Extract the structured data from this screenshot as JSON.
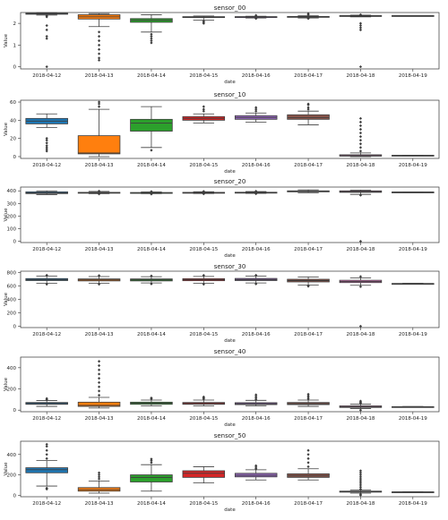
{
  "chart_data": [
    {
      "type": "box",
      "title": "sensor_00",
      "xlabel": "date",
      "ylabel": "Value",
      "categories": [
        "2018-04-12",
        "2018-04-13",
        "2018-04-14",
        "2018-04-15",
        "2018-04-16",
        "2018-04-17",
        "2018-04-18",
        "2018-04-19"
      ],
      "ylim": [
        -0.1,
        2.5
      ],
      "yticks": [
        0,
        1,
        2
      ],
      "boxes": [
        {
          "min": 2.38,
          "q1": 2.42,
          "median": 2.45,
          "q3": 2.47,
          "max": 2.49,
          "outliers": [
            2.35,
            2.3,
            1.9,
            1.7,
            1.4,
            1.3,
            0.0
          ],
          "color": "#1f77b4"
        },
        {
          "min": 1.85,
          "q1": 2.2,
          "median": 2.3,
          "q3": 2.4,
          "max": 2.45,
          "outliers": [
            1.6,
            1.4,
            1.2,
            1.0,
            0.8,
            0.6,
            0.4,
            0.3
          ],
          "color": "#ff7f0e"
        },
        {
          "min": 1.6,
          "q1": 2.05,
          "median": 2.15,
          "q3": 2.22,
          "max": 2.4,
          "outliers": [
            1.5,
            1.4,
            1.3,
            1.2,
            1.1
          ],
          "color": "#2ca02c"
        },
        {
          "min": 2.15,
          "q1": 2.27,
          "median": 2.29,
          "q3": 2.31,
          "max": 2.34,
          "outliers": [
            2.1,
            2.05,
            2.0
          ],
          "color": "#d62728"
        },
        {
          "min": 2.25,
          "q1": 2.29,
          "median": 2.3,
          "q3": 2.31,
          "max": 2.33,
          "outliers": [
            2.22,
            2.37
          ],
          "color": "#9467bd"
        },
        {
          "min": 2.25,
          "q1": 2.3,
          "median": 2.31,
          "q3": 2.32,
          "max": 2.35,
          "outliers": [
            2.4,
            2.45,
            2.22
          ],
          "color": "#8c564b"
        },
        {
          "min": 2.3,
          "q1": 2.34,
          "median": 2.35,
          "q3": 2.36,
          "max": 2.38,
          "outliers": [
            2.4,
            2.0,
            1.9,
            1.8,
            1.7,
            0.0
          ],
          "color": "#e377c2"
        },
        {
          "min": 2.34,
          "q1": 2.34,
          "median": 2.35,
          "q3": 2.36,
          "max": 2.36,
          "outliers": [],
          "color": "#7f7f7f"
        }
      ]
    },
    {
      "type": "box",
      "title": "sensor_10",
      "xlabel": "date",
      "ylabel": "Value",
      "categories": [
        "2018-04-12",
        "2018-04-13",
        "2018-04-14",
        "2018-04-15",
        "2018-04-16",
        "2018-04-17",
        "2018-04-18",
        "2018-04-19"
      ],
      "ylim": [
        -2,
        62
      ],
      "yticks": [
        0,
        20,
        40,
        60
      ],
      "boxes": [
        {
          "min": 32,
          "q1": 36,
          "median": 39,
          "q3": 42,
          "max": 47,
          "outliers": [
            20,
            18,
            15,
            12,
            10,
            8,
            6
          ],
          "color": "#1f77b4"
        },
        {
          "min": 0,
          "q1": 3,
          "median": 4,
          "q3": 23,
          "max": 52,
          "outliers": [
            55,
            58,
            60
          ],
          "color": "#ff7f0e"
        },
        {
          "min": 10,
          "q1": 28,
          "median": 37,
          "q3": 41,
          "max": 55,
          "outliers": [
            7
          ],
          "color": "#2ca02c"
        },
        {
          "min": 37,
          "q1": 40,
          "median": 42,
          "q3": 44,
          "max": 47,
          "outliers": [
            50,
            52,
            55
          ],
          "color": "#d62728"
        },
        {
          "min": 38,
          "q1": 41,
          "median": 43,
          "q3": 45,
          "max": 48,
          "outliers": [
            50,
            52,
            54
          ],
          "color": "#9467bd"
        },
        {
          "min": 35,
          "q1": 41,
          "median": 43,
          "q3": 46,
          "max": 50,
          "outliers": [
            52,
            54,
            57,
            58
          ],
          "color": "#8c564b"
        },
        {
          "min": 0,
          "q1": 0.5,
          "median": 1,
          "q3": 2,
          "max": 4,
          "outliers": [
            6,
            10,
            14,
            18,
            22,
            26,
            30,
            34,
            38,
            42
          ],
          "color": "#e377c2"
        },
        {
          "min": 1,
          "q1": 1,
          "median": 1,
          "q3": 1.5,
          "max": 1.5,
          "outliers": [],
          "color": "#7f7f7f"
        }
      ]
    },
    {
      "type": "box",
      "title": "sensor_20",
      "xlabel": "date",
      "ylabel": "Value",
      "categories": [
        "2018-04-12",
        "2018-04-13",
        "2018-04-14",
        "2018-04-15",
        "2018-04-16",
        "2018-04-17",
        "2018-04-18",
        "2018-04-19"
      ],
      "ylim": [
        -10,
        430
      ],
      "yticks": [
        0,
        100,
        200,
        300,
        400
      ],
      "boxes": [
        {
          "min": 370,
          "q1": 378,
          "median": 384,
          "q3": 392,
          "max": 400,
          "outliers": [],
          "color": "#1f77b4"
        },
        {
          "min": 378,
          "q1": 382,
          "median": 385,
          "q3": 388,
          "max": 395,
          "outliers": [
            398,
            375
          ],
          "color": "#ff7f0e"
        },
        {
          "min": 378,
          "q1": 381,
          "median": 384,
          "q3": 387,
          "max": 392,
          "outliers": [
            395,
            374
          ],
          "color": "#2ca02c"
        },
        {
          "min": 379,
          "q1": 382,
          "median": 385,
          "q3": 388,
          "max": 393,
          "outliers": [
            396,
            376
          ],
          "color": "#d62728"
        },
        {
          "min": 380,
          "q1": 383,
          "median": 386,
          "q3": 389,
          "max": 394,
          "outliers": [
            397,
            377
          ],
          "color": "#9467bd"
        },
        {
          "min": 385,
          "q1": 392,
          "median": 396,
          "q3": 400,
          "max": 408,
          "outliers": [],
          "color": "#8c564b"
        },
        {
          "min": 372,
          "q1": 388,
          "median": 394,
          "q3": 400,
          "max": 406,
          "outliers": [
            365,
            0
          ],
          "color": "#e377c2"
        },
        {
          "min": 388,
          "q1": 389,
          "median": 390,
          "q3": 391,
          "max": 392,
          "outliers": [],
          "color": "#7f7f7f"
        }
      ]
    },
    {
      "type": "box",
      "title": "sensor_30",
      "xlabel": "date",
      "ylabel": "Value",
      "categories": [
        "2018-04-12",
        "2018-04-13",
        "2018-04-14",
        "2018-04-15",
        "2018-04-16",
        "2018-04-17",
        "2018-04-18",
        "2018-04-19"
      ],
      "ylim": [
        -20,
        820
      ],
      "yticks": [
        0,
        200,
        400,
        600,
        800
      ],
      "boxes": [
        {
          "min": 640,
          "q1": 680,
          "median": 695,
          "q3": 710,
          "max": 745,
          "outliers": [
            760,
            625
          ],
          "color": "#1f77b4"
        },
        {
          "min": 640,
          "q1": 675,
          "median": 690,
          "q3": 705,
          "max": 740,
          "outliers": [
            755,
            625
          ],
          "color": "#ff7f0e"
        },
        {
          "min": 645,
          "q1": 675,
          "median": 690,
          "q3": 705,
          "max": 738,
          "outliers": [
            750,
            630
          ],
          "color": "#2ca02c"
        },
        {
          "min": 640,
          "q1": 678,
          "median": 693,
          "q3": 708,
          "max": 742,
          "outliers": [
            758,
            625
          ],
          "color": "#d62728"
        },
        {
          "min": 645,
          "q1": 680,
          "median": 695,
          "q3": 712,
          "max": 745,
          "outliers": [
            760,
            630
          ],
          "color": "#9467bd"
        },
        {
          "min": 615,
          "q1": 660,
          "median": 680,
          "q3": 700,
          "max": 735,
          "outliers": [
            600,
            595
          ],
          "color": "#8c564b"
        },
        {
          "min": 610,
          "q1": 650,
          "median": 665,
          "q3": 685,
          "max": 720,
          "outliers": [
            740,
            590,
            0
          ],
          "color": "#e377c2"
        },
        {
          "min": 633,
          "q1": 635,
          "median": 636,
          "q3": 637,
          "max": 640,
          "outliers": [],
          "color": "#7f7f7f"
        }
      ]
    },
    {
      "type": "box",
      "title": "sensor_40",
      "xlabel": "date",
      "ylabel": "Value",
      "categories": [
        "2018-04-12",
        "2018-04-13",
        "2018-04-14",
        "2018-04-15",
        "2018-04-16",
        "2018-04-17",
        "2018-04-18",
        "2018-04-19"
      ],
      "ylim": [
        -15,
        500
      ],
      "yticks": [
        0,
        200,
        400
      ],
      "boxes": [
        {
          "min": 35,
          "q1": 55,
          "median": 62,
          "q3": 72,
          "max": 90,
          "outliers": [
            100,
            110
          ],
          "color": "#1f77b4"
        },
        {
          "min": 20,
          "q1": 35,
          "median": 45,
          "q3": 75,
          "max": 120,
          "outliers": [
            140,
            180,
            220,
            260,
            300,
            340,
            380,
            420,
            460
          ],
          "color": "#ff7f0e"
        },
        {
          "min": 40,
          "q1": 55,
          "median": 65,
          "q3": 75,
          "max": 95,
          "outliers": [
            105,
            115
          ],
          "color": "#2ca02c"
        },
        {
          "min": 40,
          "q1": 55,
          "median": 62,
          "q3": 72,
          "max": 95,
          "outliers": [
            105,
            115,
            125
          ],
          "color": "#d62728"
        },
        {
          "min": 40,
          "q1": 52,
          "median": 60,
          "q3": 70,
          "max": 92,
          "outliers": [
            100,
            115,
            130,
            145
          ],
          "color": "#9467bd"
        },
        {
          "min": 35,
          "q1": 52,
          "median": 60,
          "q3": 72,
          "max": 95,
          "outliers": [
            105,
            120,
            135,
            150
          ],
          "color": "#8c564b"
        },
        {
          "min": 15,
          "q1": 25,
          "median": 32,
          "q3": 40,
          "max": 55,
          "outliers": [
            65,
            75,
            85,
            0
          ],
          "color": "#e377c2"
        },
        {
          "min": 30,
          "q1": 31,
          "median": 32,
          "q3": 33,
          "max": 34,
          "outliers": [],
          "color": "#7f7f7f"
        }
      ]
    },
    {
      "type": "box",
      "title": "sensor_50",
      "xlabel": "date",
      "ylabel": "Value",
      "categories": [
        "2018-04-12",
        "2018-04-13",
        "2018-04-14",
        "2018-04-15",
        "2018-04-16",
        "2018-04-17",
        "2018-04-18",
        "2018-04-19"
      ],
      "ylim": [
        -15,
        530
      ],
      "yticks": [
        0,
        200,
        400
      ],
      "boxes": [
        {
          "min": 90,
          "q1": 220,
          "median": 250,
          "q3": 270,
          "max": 340,
          "outliers": [
            360,
            400,
            440,
            480,
            500,
            70,
            60
          ],
          "color": "#1f77b4"
        },
        {
          "min": 20,
          "q1": 40,
          "median": 55,
          "q3": 75,
          "max": 140,
          "outliers": [
            160,
            180,
            200,
            220
          ],
          "color": "#ff7f0e"
        },
        {
          "min": 40,
          "q1": 130,
          "median": 175,
          "q3": 200,
          "max": 300,
          "outliers": [
            320,
            340,
            355
          ],
          "color": "#2ca02c"
        },
        {
          "min": 120,
          "q1": 175,
          "median": 215,
          "q3": 240,
          "max": 280,
          "outliers": [],
          "color": "#d62728"
        },
        {
          "min": 150,
          "q1": 180,
          "median": 195,
          "q3": 215,
          "max": 250,
          "outliers": [
            260,
            275,
            290
          ],
          "color": "#9467bd"
        },
        {
          "min": 150,
          "q1": 175,
          "median": 190,
          "q3": 210,
          "max": 260,
          "outliers": [
            280,
            320,
            360,
            400,
            440
          ],
          "color": "#8c564b"
        },
        {
          "min": 20,
          "q1": 30,
          "median": 35,
          "q3": 40,
          "max": 50,
          "outliers": [
            60,
            80,
            100,
            120,
            140,
            160,
            180,
            200,
            220,
            240,
            10,
            0
          ],
          "color": "#e377c2"
        },
        {
          "min": 30,
          "q1": 31,
          "median": 32,
          "q3": 33,
          "max": 34,
          "outliers": [],
          "color": "#7f7f7f"
        }
      ]
    }
  ]
}
